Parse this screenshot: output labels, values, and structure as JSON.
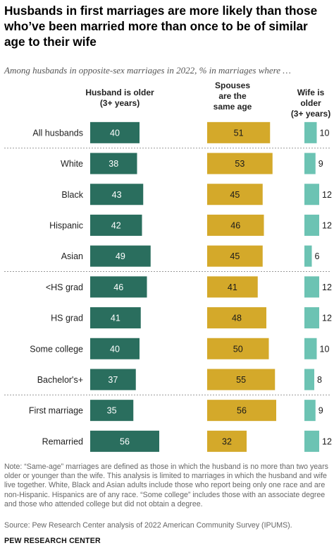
{
  "title": "Husbands in first marriages are more likely than those who’ve been married more than once to be of similar age to their wife",
  "subtitle": "Among husbands in opposite-sex marriages in 2022, % in marriages where …",
  "column_headers": {
    "older": "Husband is older\n(3+ years)",
    "same": "Spouses\nare the\nsame age",
    "younger": "Wife is older\n(3+ years)"
  },
  "note": "Note: “Same-age” marriages are defined as those in which the husband is no more than two years older or younger than the wife. This analysis is limited to marriages in which the husband and wife live together. White, Black and Asian adults include those who report being only one race and are non-Hispanic. Hispanics are of any race. “Some college” includes those with an associate degree and those who attended college but did not obtain a degree.",
  "source": "Source: Pew Research Center analysis of 2022 American Community Survey (IPUMS).",
  "brand": "PEW RESEARCH CENTER",
  "colors": {
    "older": "#2a6e5e",
    "same": "#d4a92a",
    "younger": "#6cc3b3",
    "divider": "#999999"
  },
  "chart_data": {
    "type": "bar",
    "orientation": "horizontal",
    "categories": [
      "All husbands",
      "White",
      "Black",
      "Hispanic",
      "Asian",
      "<HS grad",
      "HS grad",
      "Some college",
      "Bachelor's+",
      "First marriage",
      "Remarried"
    ],
    "groups_after_index": [
      0,
      4,
      8
    ],
    "series": [
      {
        "name": "Husband is older (3+ years)",
        "values": [
          40,
          38,
          43,
          42,
          49,
          46,
          41,
          40,
          37,
          35,
          56
        ]
      },
      {
        "name": "Spouses are the same age",
        "values": [
          51,
          53,
          45,
          46,
          45,
          41,
          48,
          50,
          55,
          56,
          32
        ]
      },
      {
        "name": "Wife is older (3+ years)",
        "values": [
          10,
          9,
          12,
          12,
          6,
          12,
          12,
          10,
          8,
          9,
          12
        ]
      }
    ]
  }
}
